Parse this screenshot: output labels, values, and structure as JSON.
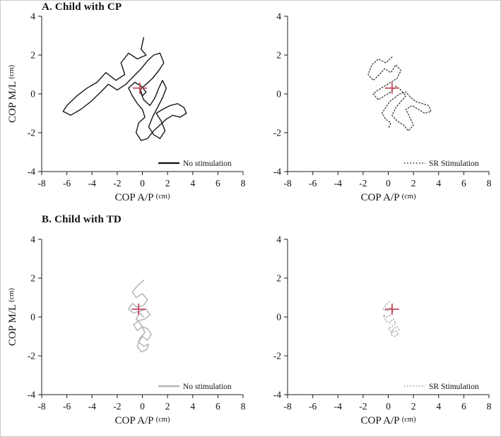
{
  "figure": {
    "panel_a_title": "A. Child with CP",
    "panel_b_title": "B. Child with TD",
    "marker_color": "#c34a5c",
    "axis_color": "#1c1c1c"
  },
  "chart_data": [
    {
      "type": "line",
      "panel": "A",
      "condition": "No stimulation",
      "xlabel": "COP A/P",
      "xlabel_unit": "(cm)",
      "ylabel": "COP M/L",
      "ylabel_unit": "(cm)",
      "xlim": [
        -8,
        8
      ],
      "ylim": [
        -4,
        4
      ],
      "xticks": [
        -8,
        -6,
        -4,
        -2,
        0,
        2,
        4,
        6,
        8
      ],
      "yticks": [
        -4,
        -2,
        0,
        2,
        4
      ],
      "legend": {
        "label": "No stimulation",
        "style": "solid",
        "color": "#111111",
        "sample_width": 2.2
      },
      "trace": {
        "style": "solid",
        "color": "#161616",
        "width": 1.4
      },
      "mean_cop_marker": [
        -0.2,
        0.3
      ],
      "points": [
        [
          0.1,
          2.9
        ],
        [
          -0.1,
          2.3
        ],
        [
          0.3,
          2.0
        ],
        [
          -0.4,
          1.8
        ],
        [
          -1.1,
          2.1
        ],
        [
          -1.7,
          1.6
        ],
        [
          -1.4,
          1.0
        ],
        [
          -2.1,
          0.7
        ],
        [
          -2.9,
          1.1
        ],
        [
          -3.6,
          0.6
        ],
        [
          -4.4,
          0.3
        ],
        [
          -5.2,
          -0.1
        ],
        [
          -6.0,
          -0.6
        ],
        [
          -6.3,
          -0.9
        ],
        [
          -5.7,
          -1.1
        ],
        [
          -4.9,
          -0.8
        ],
        [
          -4.1,
          -0.4
        ],
        [
          -3.3,
          0.1
        ],
        [
          -2.7,
          0.5
        ],
        [
          -2.0,
          0.2
        ],
        [
          -1.3,
          0.5
        ],
        [
          -0.7,
          0.9
        ],
        [
          -0.1,
          1.3
        ],
        [
          0.4,
          1.7
        ],
        [
          0.9,
          2.0
        ],
        [
          1.4,
          2.1
        ],
        [
          1.7,
          1.6
        ],
        [
          1.3,
          1.2
        ],
        [
          0.8,
          0.8
        ],
        [
          0.3,
          0.5
        ],
        [
          -0.2,
          0.2
        ],
        [
          0.1,
          -0.3
        ],
        [
          0.6,
          -0.6
        ],
        [
          1.0,
          -0.2
        ],
        [
          1.3,
          0.3
        ],
        [
          1.6,
          0.7
        ],
        [
          1.9,
          0.3
        ],
        [
          1.6,
          -0.2
        ],
        [
          1.2,
          -0.7
        ],
        [
          0.8,
          -1.2
        ],
        [
          0.5,
          -1.7
        ],
        [
          0.9,
          -2.1
        ],
        [
          1.4,
          -2.3
        ],
        [
          1.8,
          -1.9
        ],
        [
          1.5,
          -1.4
        ],
        [
          1.1,
          -1.0
        ],
        [
          1.6,
          -0.8
        ],
        [
          2.2,
          -0.6
        ],
        [
          2.8,
          -0.5
        ],
        [
          3.3,
          -0.7
        ],
        [
          3.5,
          -1.0
        ],
        [
          3.0,
          -1.2
        ],
        [
          2.4,
          -1.1
        ],
        [
          1.9,
          -1.3
        ],
        [
          1.4,
          -1.6
        ],
        [
          0.9,
          -1.9
        ],
        [
          0.4,
          -2.3
        ],
        [
          -0.1,
          -2.4
        ],
        [
          -0.5,
          -2.0
        ],
        [
          -0.3,
          -1.5
        ],
        [
          0.2,
          -1.2
        ],
        [
          0.0,
          -0.8
        ],
        [
          -0.4,
          -0.5
        ],
        [
          -0.8,
          -0.1
        ],
        [
          -1.1,
          0.3
        ],
        [
          -0.6,
          0.6
        ],
        [
          -0.1,
          0.4
        ],
        [
          0.3,
          0.1
        ],
        [
          0.0,
          -0.1
        ],
        [
          -0.2,
          0.3
        ]
      ]
    },
    {
      "type": "line",
      "panel": "A",
      "condition": "SR Stimulation",
      "xlabel": "COP A/P",
      "xlabel_unit": "(cm)",
      "ylabel": "",
      "ylabel_unit": "",
      "xlim": [
        -8,
        8
      ],
      "ylim": [
        -4,
        4
      ],
      "xticks": [
        -8,
        -6,
        -4,
        -2,
        0,
        2,
        4,
        6,
        8
      ],
      "yticks": [
        -4,
        -2,
        0,
        2,
        4
      ],
      "legend": {
        "label": "SR Stimulation",
        "style": "dotted",
        "color": "#333333",
        "sample_width": 1.4
      },
      "trace": {
        "style": "dotted",
        "color": "#383838",
        "width": 1.3
      },
      "mean_cop_marker": [
        0.3,
        0.3
      ],
      "points": [
        [
          0.3,
          1.9
        ],
        [
          -0.2,
          1.6
        ],
        [
          -0.8,
          1.8
        ],
        [
          -1.3,
          1.5
        ],
        [
          -1.6,
          1.0
        ],
        [
          -1.2,
          0.7
        ],
        [
          -0.7,
          1.0
        ],
        [
          -0.3,
          1.3
        ],
        [
          0.2,
          1.1
        ],
        [
          0.6,
          1.5
        ],
        [
          1.0,
          1.2
        ],
        [
          0.7,
          0.8
        ],
        [
          0.2,
          0.6
        ],
        [
          -0.3,
          0.4
        ],
        [
          -0.8,
          0.2
        ],
        [
          -1.2,
          0.0
        ],
        [
          -0.8,
          -0.3
        ],
        [
          -0.3,
          -0.1
        ],
        [
          0.2,
          0.1
        ],
        [
          0.6,
          0.4
        ],
        [
          1.0,
          0.2
        ],
        [
          1.4,
          -0.1
        ],
        [
          1.0,
          -0.4
        ],
        [
          0.6,
          -0.7
        ],
        [
          0.3,
          -1.1
        ],
        [
          0.7,
          -1.4
        ],
        [
          1.2,
          -1.6
        ],
        [
          1.6,
          -1.9
        ],
        [
          2.0,
          -1.6
        ],
        [
          1.7,
          -1.2
        ],
        [
          1.4,
          -0.8
        ],
        [
          1.9,
          -0.6
        ],
        [
          2.4,
          -0.8
        ],
        [
          2.9,
          -1.0
        ],
        [
          3.4,
          -0.9
        ],
        [
          3.2,
          -0.6
        ],
        [
          2.7,
          -0.5
        ],
        [
          2.2,
          -0.4
        ],
        [
          1.8,
          -0.2
        ],
        [
          1.4,
          0.1
        ],
        [
          0.9,
          0.0
        ],
        [
          0.5,
          -0.2
        ],
        [
          0.1,
          -0.4
        ],
        [
          -0.2,
          -0.7
        ],
        [
          -0.5,
          -1.0
        ],
        [
          -0.2,
          -1.3
        ],
        [
          0.2,
          -1.5
        ],
        [
          0.0,
          -1.8
        ]
      ]
    },
    {
      "type": "line",
      "panel": "B",
      "condition": "No stimulation",
      "xlabel": "COP A/P",
      "xlabel_unit": "(cm)",
      "ylabel": "COP M/L",
      "ylabel_unit": "(cm)",
      "xlim": [
        -8,
        8
      ],
      "ylim": [
        -4,
        4
      ],
      "xticks": [
        -8,
        -6,
        -4,
        -2,
        0,
        2,
        4,
        6,
        8
      ],
      "yticks": [
        -4,
        -2,
        0,
        2,
        4
      ],
      "legend": {
        "label": "No stimulation",
        "style": "solid",
        "color": "#b5b5b5",
        "sample_width": 2.5
      },
      "trace": {
        "style": "solid",
        "color": "#b7b7b7",
        "width": 1.6
      },
      "mean_cop_marker": [
        -0.3,
        0.4
      ],
      "points": [
        [
          0.1,
          1.9
        ],
        [
          -0.4,
          1.6
        ],
        [
          -0.8,
          1.3
        ],
        [
          -0.5,
          1.0
        ],
        [
          0.0,
          1.2
        ],
        [
          0.4,
          0.9
        ],
        [
          0.1,
          0.6
        ],
        [
          -0.4,
          0.5
        ],
        [
          -0.8,
          0.7
        ],
        [
          -1.1,
          0.4
        ],
        [
          -0.7,
          0.2
        ],
        [
          -0.2,
          0.3
        ],
        [
          0.3,
          0.4
        ],
        [
          0.6,
          0.1
        ],
        [
          0.2,
          -0.1
        ],
        [
          -0.3,
          -0.2
        ],
        [
          -0.7,
          -0.4
        ],
        [
          -0.4,
          -0.7
        ],
        [
          0.0,
          -0.5
        ],
        [
          0.4,
          -0.6
        ],
        [
          0.7,
          -0.9
        ],
        [
          0.4,
          -1.2
        ],
        [
          0.0,
          -1.0
        ],
        [
          -0.3,
          -1.3
        ],
        [
          0.1,
          -1.5
        ],
        [
          0.5,
          -1.4
        ],
        [
          0.3,
          -1.7
        ],
        [
          -0.1,
          -1.8
        ],
        [
          -0.4,
          -1.5
        ],
        [
          -0.2,
          -1.1
        ],
        [
          0.2,
          -0.8
        ],
        [
          -0.1,
          -0.4
        ],
        [
          -0.5,
          -0.1
        ],
        [
          -0.2,
          0.2
        ],
        [
          0.1,
          0.0
        ]
      ]
    },
    {
      "type": "line",
      "panel": "B",
      "condition": "SR Stimulation",
      "xlabel": "COP A/P",
      "xlabel_unit": "(cm)",
      "ylabel": "",
      "ylabel_unit": "",
      "xlim": [
        -8,
        8
      ],
      "ylim": [
        -4,
        4
      ],
      "xticks": [
        -8,
        -6,
        -4,
        -2,
        0,
        2,
        4,
        6,
        8
      ],
      "yticks": [
        -4,
        -2,
        0,
        2,
        4
      ],
      "legend": {
        "label": "SR Stimulation",
        "style": "dotted",
        "color": "#9a9a9a",
        "sample_width": 1.4
      },
      "trace": {
        "style": "dotted",
        "color": "#a6a6a6",
        "width": 1.3
      },
      "mean_cop_marker": [
        0.3,
        0.4
      ],
      "points": [
        [
          0.1,
          0.8
        ],
        [
          -0.2,
          0.6
        ],
        [
          -0.4,
          0.4
        ],
        [
          -0.1,
          0.3
        ],
        [
          0.2,
          0.5
        ],
        [
          0.4,
          0.3
        ],
        [
          0.2,
          0.1
        ],
        [
          -0.1,
          0.0
        ],
        [
          -0.4,
          0.1
        ],
        [
          -0.2,
          -0.2
        ],
        [
          0.1,
          -0.3
        ],
        [
          0.4,
          -0.1
        ],
        [
          0.6,
          -0.3
        ],
        [
          0.3,
          -0.5
        ],
        [
          0.0,
          -0.6
        ],
        [
          0.3,
          -0.8
        ],
        [
          0.6,
          -0.7
        ],
        [
          0.8,
          -0.9
        ],
        [
          0.5,
          -1.0
        ],
        [
          0.2,
          -0.9
        ],
        [
          0.4,
          -0.6
        ],
        [
          0.7,
          -0.5
        ],
        [
          0.9,
          -0.7
        ]
      ]
    }
  ]
}
